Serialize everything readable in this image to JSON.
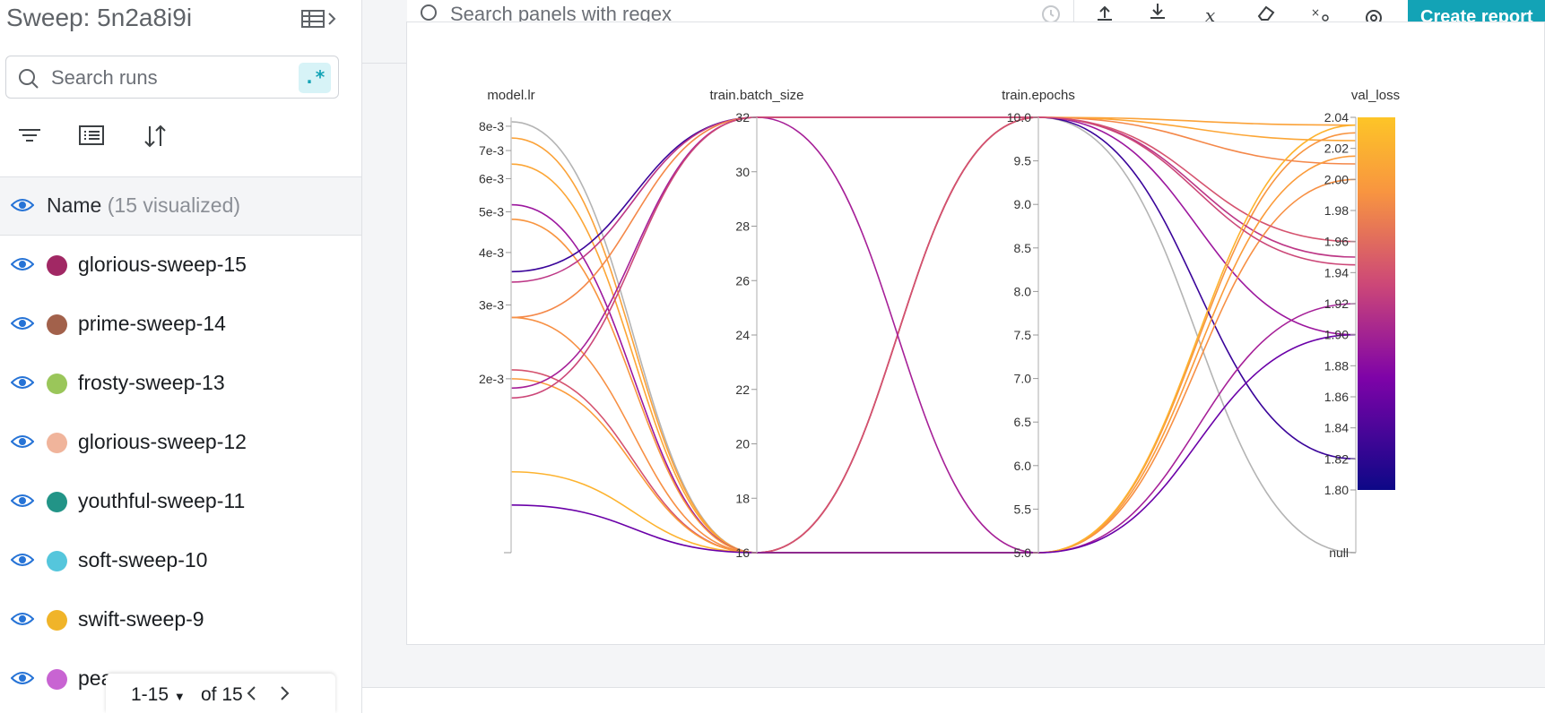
{
  "sidebar": {
    "sweep_title": "Sweep: 5n2a8i9i",
    "search": {
      "placeholder": "Search runs",
      "regex_label": ".*"
    },
    "name_header": {
      "label": "Name",
      "count": "(15 visualized)"
    },
    "runs": [
      {
        "name": "glorious-sweep-15",
        "color": "#a12864"
      },
      {
        "name": "prime-sweep-14",
        "color": "#a2614b"
      },
      {
        "name": "frosty-sweep-13",
        "color": "#9ac65a"
      },
      {
        "name": "glorious-sweep-12",
        "color": "#f0b49b"
      },
      {
        "name": "youthful-sweep-11",
        "color": "#229487"
      },
      {
        "name": "soft-sweep-10",
        "color": "#55c6dc"
      },
      {
        "name": "swift-sweep-9",
        "color": "#f0b429"
      },
      {
        "name": "pea",
        "color": "#c864d2"
      }
    ],
    "pager": {
      "range": "1-15",
      "of": "of 15"
    }
  },
  "toolbar": {
    "search_placeholder": "Search panels with regex",
    "create_report": "Create report"
  },
  "chart_data": {
    "type": "parallel_coordinates",
    "axes": [
      {
        "title": "model.lr",
        "scale": "log",
        "ticks": [
          "8e-3",
          "7e-3",
          "6e-3",
          "5e-3",
          "4e-3",
          "3e-3",
          "2e-3"
        ]
      },
      {
        "title": "train.batch_size",
        "range": [
          16,
          32
        ],
        "ticks": [
          "32",
          "30",
          "28",
          "26",
          "24",
          "22",
          "20",
          "18",
          "16"
        ]
      },
      {
        "title": "train.epochs",
        "range": [
          5.0,
          10.0
        ],
        "ticks": [
          "10.0",
          "9.5",
          "9.0",
          "8.5",
          "8.0",
          "7.5",
          "7.0",
          "6.5",
          "6.0",
          "5.5",
          "5.0"
        ]
      },
      {
        "title": "val_loss",
        "range": [
          1.8,
          2.04
        ],
        "ticks": [
          "2.04",
          "2.02",
          "2.00",
          "1.98",
          "1.96",
          "1.94",
          "1.92",
          "1.90",
          "1.88",
          "1.86",
          "1.84",
          "1.82",
          "1.80",
          "null"
        ]
      }
    ],
    "colorbar": {
      "min": 1.8,
      "max": 2.04,
      "colors": [
        "#0d0887",
        "#7e03a8",
        "#cc4778",
        "#f89540",
        "#f0f921"
      ]
    },
    "runs": [
      {
        "lr": 0.0082,
        "batch": 16,
        "epochs": 10,
        "loss": null,
        "color": "#b4b4b4"
      },
      {
        "lr": 0.0075,
        "batch": 16,
        "epochs": 10,
        "loss": 2.035,
        "color": "#fba238"
      },
      {
        "lr": 0.0065,
        "batch": 16,
        "epochs": 10,
        "loss": 2.025,
        "color": "#fca636"
      },
      {
        "lr": 0.0052,
        "batch": 16,
        "epochs": 10,
        "loss": 1.9,
        "color": "#9c179e"
      },
      {
        "lr": 0.0048,
        "batch": 16,
        "epochs": 5,
        "loss": 2.03,
        "color": "#f89540"
      },
      {
        "lr": 0.0036,
        "batch": 32,
        "epochs": 10,
        "loss": 1.82,
        "color": "#3a049a"
      },
      {
        "lr": 0.0034,
        "batch": 32,
        "epochs": 10,
        "loss": 1.95,
        "color": "#bd3786"
      },
      {
        "lr": 0.0028,
        "batch": 32,
        "epochs": 10,
        "loss": 2.01,
        "color": "#f48849"
      },
      {
        "lr": 0.0028,
        "batch": 16,
        "epochs": 5,
        "loss": 2.0,
        "color": "#f79044"
      },
      {
        "lr": 0.0021,
        "batch": 16,
        "epochs": 10,
        "loss": 1.96,
        "color": "#d5536f"
      },
      {
        "lr": 0.002,
        "batch": 16,
        "epochs": 5,
        "loss": 2.015,
        "color": "#fb9b3a"
      },
      {
        "lr": 0.0019,
        "batch": 32,
        "epochs": 5,
        "loss": 1.92,
        "color": "#a62098"
      },
      {
        "lr": 0.0018,
        "batch": 32,
        "epochs": 10,
        "loss": 1.945,
        "color": "#cc4778"
      },
      {
        "lr": 0.0012,
        "batch": 16,
        "epochs": 5,
        "loss": 2.035,
        "color": "#fdb32f"
      },
      {
        "lr": 0.001,
        "batch": 16,
        "epochs": 5,
        "loss": 1.9,
        "color": "#6a00a8"
      }
    ]
  }
}
